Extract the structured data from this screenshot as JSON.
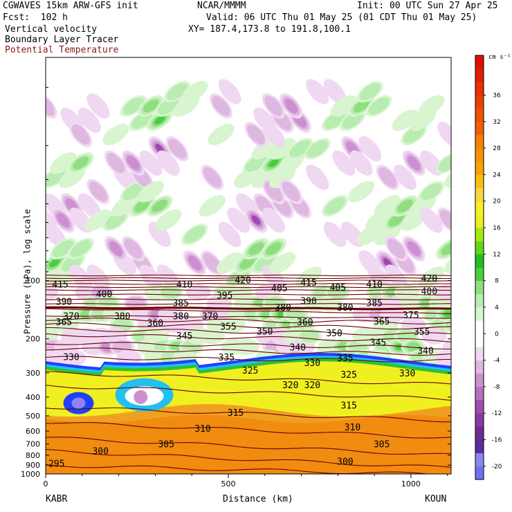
{
  "header": {
    "model": "CGWAVES 15km ARW-GFS init",
    "org": "NCAR/MMMM",
    "init": "Init: 00 UTC Sun 27 Apr 25",
    "fcst": "Fcst:  102 h",
    "valid": "Valid: 06 UTC Thu 01 May 25 (01 CDT Thu 01 May 25)",
    "field1": "Vertical velocity",
    "xy": "XY= 187.4,173.8 to 191.8,100.1",
    "field2": "Boundary Layer Tracer",
    "field3": "Potential Temperature",
    "field3_color": "#8b1a1a"
  },
  "chart_data": {
    "type": "heatmap",
    "title": "Vertical velocity / Boundary Layer Tracer / Potential Temperature cross section",
    "xlabel": "Distance (km)",
    "ylabel": "Pressure (hPa), log scale",
    "x_ticks": [
      {
        "v": 0,
        "label": "0"
      },
      {
        "v": 500,
        "label": "500"
      },
      {
        "v": 1000,
        "label": "1000"
      }
    ],
    "xlim": [
      0,
      1110
    ],
    "y_log": true,
    "ylim": [
      1000,
      7
    ],
    "y_ticks": [
      {
        "v": 100,
        "label": "100"
      },
      {
        "v": 200,
        "label": "200"
      },
      {
        "v": 300,
        "label": "300"
      },
      {
        "v": 400,
        "label": "400"
      },
      {
        "v": 500,
        "label": "500"
      },
      {
        "v": 600,
        "label": "600"
      },
      {
        "v": 700,
        "label": "700"
      },
      {
        "v": 800,
        "label": "800"
      },
      {
        "v": 900,
        "label": "900"
      },
      {
        "v": 1000,
        "label": "1000"
      }
    ],
    "endpoints": {
      "left": "KABR",
      "right": "KOUN"
    },
    "colorbar": {
      "unit": "cm s⁻¹",
      "min": -22,
      "max": 42,
      "step": 2,
      "labels": [
        36,
        32,
        28,
        24,
        20,
        16,
        12,
        8,
        4,
        0,
        -4,
        -8,
        -12,
        -16,
        -20
      ],
      "colors": [
        "#7070f0",
        "#8e84f0",
        "#5a2ca0",
        "#6b2d91",
        "#8a3aa0",
        "#a04ab0",
        "#b870c2",
        "#cc90d0",
        "#dfb8e2",
        "#f0d8f2",
        "#ffffff",
        "#ffffff",
        "#d8f5d0",
        "#b8ecb0",
        "#8ede80",
        "#4acc40",
        "#20c020",
        "#60d818",
        "#a8e818",
        "#e8f020",
        "#f8f020",
        "#f8d840",
        "#f8c010",
        "#f8a000",
        "#f89000",
        "#f88000",
        "#f06000",
        "#f05000",
        "#e84000",
        "#e83000",
        "#e02000",
        "#e01000"
      ]
    },
    "theta_contours": [
      {
        "theta": 295,
        "p_left": 900,
        "p_right": 1010
      },
      {
        "theta": 300,
        "p_left": 760,
        "p_right": 930
      },
      {
        "theta": 305,
        "p_left": 650,
        "p_right": 800
      },
      {
        "theta": 310,
        "p_left": 540,
        "p_right": 650
      },
      {
        "theta": 315,
        "p_left": 450,
        "p_right": 530
      },
      {
        "theta": 320,
        "p_left": 350,
        "p_right": 410
      },
      {
        "theta": 325,
        "p_left": 300,
        "p_right": 345
      },
      {
        "theta": 330,
        "p_left": 250,
        "p_right": 260
      },
      {
        "theta": 335,
        "p_left": 225,
        "p_right": 240
      },
      {
        "theta": 340,
        "p_left": 210,
        "p_right": 222
      },
      {
        "theta": 345,
        "p_left": 190,
        "p_right": 205
      },
      {
        "theta": 350,
        "p_left": 178,
        "p_right": 190
      },
      {
        "theta": 355,
        "p_left": 168,
        "p_right": 176
      },
      {
        "theta": 360,
        "p_left": 158,
        "p_right": 165
      },
      {
        "theta": 365,
        "p_left": 152,
        "p_right": 156
      },
      {
        "theta": 370,
        "p_left": 140,
        "p_right": 148
      },
      {
        "theta": 375,
        "p_left": 138,
        "p_right": 140
      },
      {
        "theta": 380,
        "p_left": 132,
        "p_right": 132
      },
      {
        "theta": 385,
        "p_left": 125,
        "p_right": 125
      },
      {
        "theta": 390,
        "p_left": 118,
        "p_right": 118
      },
      {
        "theta": 395,
        "p_left": 112,
        "p_right": 112
      },
      {
        "theta": 400,
        "p_left": 108,
        "p_right": 108
      },
      {
        "theta": 405,
        "p_left": 104,
        "p_right": 104
      },
      {
        "theta": 410,
        "p_left": 100,
        "p_right": 100
      },
      {
        "theta": 415,
        "p_left": 97,
        "p_right": 97
      },
      {
        "theta": 420,
        "p_left": 94,
        "p_right": 94
      }
    ],
    "theta_labels": [
      {
        "text": "295",
        "x": 30,
        "p": 880
      },
      {
        "text": "300",
        "x": 150,
        "p": 760
      },
      {
        "text": "300",
        "x": 820,
        "p": 860
      },
      {
        "text": "305",
        "x": 330,
        "p": 700
      },
      {
        "text": "305",
        "x": 920,
        "p": 700
      },
      {
        "text": "310",
        "x": 430,
        "p": 580
      },
      {
        "text": "310",
        "x": 840,
        "p": 570
      },
      {
        "text": "315",
        "x": 520,
        "p": 480
      },
      {
        "text": "315",
        "x": 830,
        "p": 440
      },
      {
        "text": "320",
        "x": 670,
        "p": 345
      },
      {
        "text": "320",
        "x": 730,
        "p": 345
      },
      {
        "text": "325",
        "x": 560,
        "p": 290
      },
      {
        "text": "325",
        "x": 830,
        "p": 305
      },
      {
        "text": "330",
        "x": 70,
        "p": 247
      },
      {
        "text": "330",
        "x": 730,
        "p": 265
      },
      {
        "text": "330",
        "x": 990,
        "p": 300
      },
      {
        "text": "335",
        "x": 495,
        "p": 248
      },
      {
        "text": "335",
        "x": 820,
        "p": 250
      },
      {
        "text": "340",
        "x": 690,
        "p": 220
      },
      {
        "text": "340",
        "x": 1040,
        "p": 230
      },
      {
        "text": "345",
        "x": 380,
        "p": 192
      },
      {
        "text": "345",
        "x": 910,
        "p": 208
      },
      {
        "text": "350",
        "x": 600,
        "p": 182
      },
      {
        "text": "350",
        "x": 790,
        "p": 186
      },
      {
        "text": "355",
        "x": 500,
        "p": 172
      },
      {
        "text": "355",
        "x": 1030,
        "p": 183
      },
      {
        "text": "360",
        "x": 300,
        "p": 165
      },
      {
        "text": "360",
        "x": 710,
        "p": 163
      },
      {
        "text": "365",
        "x": 50,
        "p": 163
      },
      {
        "text": "365",
        "x": 920,
        "p": 162
      },
      {
        "text": "370",
        "x": 70,
        "p": 152
      },
      {
        "text": "370",
        "x": 450,
        "p": 152
      },
      {
        "text": "375",
        "x": 1000,
        "p": 150
      },
      {
        "text": "380",
        "x": 210,
        "p": 152
      },
      {
        "text": "380",
        "x": 370,
        "p": 152
      },
      {
        "text": "380",
        "x": 650,
        "p": 137
      },
      {
        "text": "380",
        "x": 820,
        "p": 137
      },
      {
        "text": "385",
        "x": 370,
        "p": 130
      },
      {
        "text": "385",
        "x": 900,
        "p": 130
      },
      {
        "text": "390",
        "x": 50,
        "p": 128
      },
      {
        "text": "390",
        "x": 720,
        "p": 127
      },
      {
        "text": "395",
        "x": 490,
        "p": 119
      },
      {
        "text": "400",
        "x": 160,
        "p": 117
      },
      {
        "text": "400",
        "x": 1050,
        "p": 113
      },
      {
        "text": "405",
        "x": 640,
        "p": 109
      },
      {
        "text": "405",
        "x": 800,
        "p": 108
      },
      {
        "text": "410",
        "x": 380,
        "p": 104
      },
      {
        "text": "410",
        "x": 900,
        "p": 104
      },
      {
        "text": "415",
        "x": 40,
        "p": 104
      },
      {
        "text": "415",
        "x": 720,
        "p": 102
      },
      {
        "text": "420",
        "x": 540,
        "p": 99
      },
      {
        "text": "420",
        "x": 1050,
        "p": 97
      }
    ]
  }
}
